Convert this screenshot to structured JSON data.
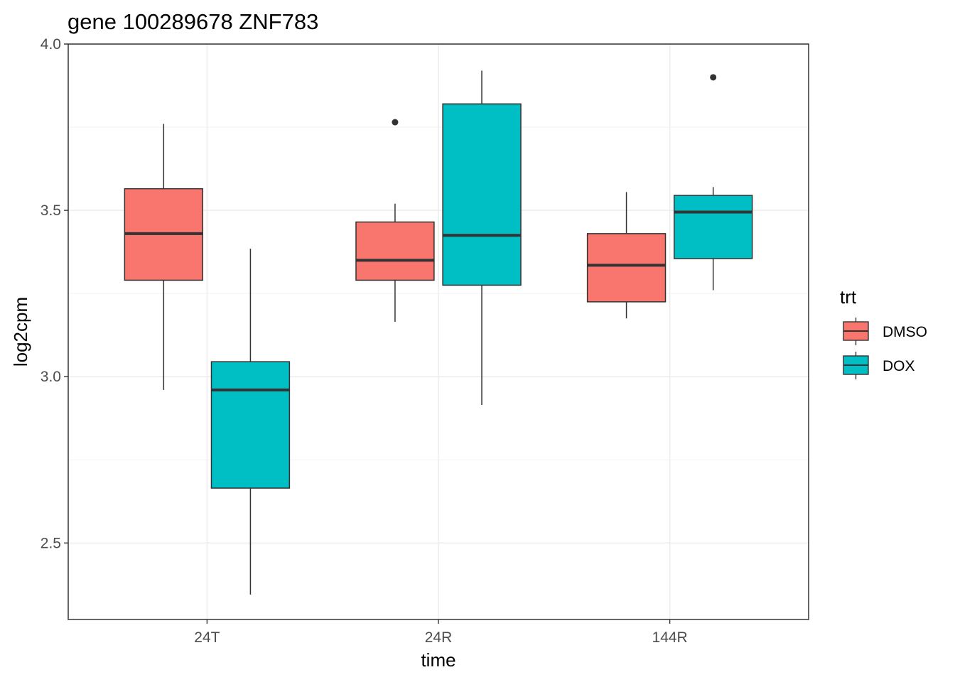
{
  "chart_data": {
    "type": "boxplot",
    "title": "gene 100289678 ZNF783",
    "xlabel": "time",
    "ylabel": "log2cpm",
    "categories": [
      "24T",
      "24R",
      "144R"
    ],
    "ylim": [
      2.27,
      4.0
    ],
    "yticks": [
      2.5,
      3.0,
      3.5,
      4.0
    ],
    "ytick_labels": [
      "2.5",
      "3.0",
      "3.5",
      "4.0"
    ],
    "grid": true,
    "legend": {
      "title": "trt",
      "position": "right"
    },
    "series": [
      {
        "name": "DMSO",
        "color": "#F8766D",
        "boxes": [
          {
            "category": "24T",
            "whisker_low": 2.96,
            "q1": 3.29,
            "median": 3.43,
            "q3": 3.565,
            "whisker_high": 3.76,
            "outliers": []
          },
          {
            "category": "24R",
            "whisker_low": 3.165,
            "q1": 3.29,
            "median": 3.35,
            "q3": 3.465,
            "whisker_high": 3.52,
            "outliers": [
              3.765
            ]
          },
          {
            "category": "144R",
            "whisker_low": 3.175,
            "q1": 3.225,
            "median": 3.335,
            "q3": 3.43,
            "whisker_high": 3.555,
            "outliers": []
          }
        ]
      },
      {
        "name": "DOX",
        "color": "#00BFC4",
        "boxes": [
          {
            "category": "24T",
            "whisker_low": 2.345,
            "q1": 2.665,
            "median": 2.96,
            "q3": 3.045,
            "whisker_high": 3.385,
            "outliers": []
          },
          {
            "category": "24R",
            "whisker_low": 2.915,
            "q1": 3.275,
            "median": 3.425,
            "q3": 3.82,
            "whisker_high": 3.92,
            "outliers": []
          },
          {
            "category": "144R",
            "whisker_low": 3.26,
            "q1": 3.355,
            "median": 3.495,
            "q3": 3.545,
            "whisker_high": 3.57,
            "outliers": [
              3.9
            ]
          }
        ]
      }
    ]
  }
}
